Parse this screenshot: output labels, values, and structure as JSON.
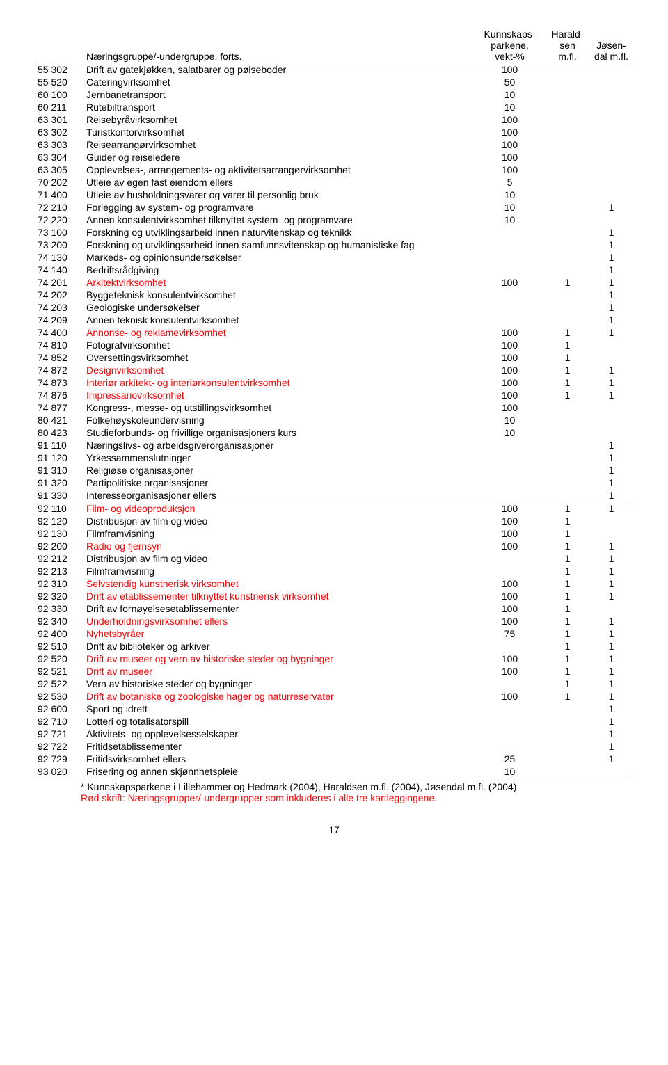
{
  "header": {
    "col_code_desc": "Næringsgruppe/-undergruppe, forts.",
    "col_v1_l1": "Kunnskaps-",
    "col_v1_l2": "parkene,",
    "col_v1_l3": "vekt-%",
    "col_v2_l1": "Harald-",
    "col_v2_l2": "sen",
    "col_v2_l3": "m.fl.",
    "col_v3_l1": "Jøsen-",
    "col_v3_l2": "dal m.fl."
  },
  "rows": [
    {
      "code": "55 302",
      "desc": "Drift av gatekjøkken, salatbarer og pølseboder",
      "v1": "100",
      "v2": "",
      "v3": "",
      "red": false
    },
    {
      "code": "55 520",
      "desc": "Cateringvirksomhet",
      "v1": "50",
      "v2": "",
      "v3": "",
      "red": false
    },
    {
      "code": "60 100",
      "desc": "Jernbanetransport",
      "v1": "10",
      "v2": "",
      "v3": "",
      "red": false
    },
    {
      "code": "60 211",
      "desc": "Rutebiltransport",
      "v1": "10",
      "v2": "",
      "v3": "",
      "red": false
    },
    {
      "code": "63 301",
      "desc": "Reisebyråvirksomhet",
      "v1": "100",
      "v2": "",
      "v3": "",
      "red": false
    },
    {
      "code": "63 302",
      "desc": "Turistkontorvirksomhet",
      "v1": "100",
      "v2": "",
      "v3": "",
      "red": false
    },
    {
      "code": "63 303",
      "desc": "Reisearrangørvirksomhet",
      "v1": "100",
      "v2": "",
      "v3": "",
      "red": false
    },
    {
      "code": "63 304",
      "desc": "Guider og reiseledere",
      "v1": "100",
      "v2": "",
      "v3": "",
      "red": false
    },
    {
      "code": "63 305",
      "desc": "Opplevelses-, arrangements- og aktivitetsarrangørvirksomhet",
      "v1": "100",
      "v2": "",
      "v3": "",
      "red": false
    },
    {
      "code": "70 202",
      "desc": "Utleie av egen fast eiendom ellers",
      "v1": "5",
      "v2": "",
      "v3": "",
      "red": false
    },
    {
      "code": "71 400",
      "desc": "Utleie av husholdningsvarer og varer til personlig bruk",
      "v1": "10",
      "v2": "",
      "v3": "",
      "red": false
    },
    {
      "code": "72 210",
      "desc": "Forlegging av system- og  programvare",
      "v1": "10",
      "v2": "",
      "v3": "1",
      "red": false
    },
    {
      "code": "72 220",
      "desc": "Annen konsulentvirksomhet tilknyttet system- og programvare",
      "v1": "10",
      "v2": "",
      "v3": "",
      "red": false
    },
    {
      "code": "73 100",
      "desc": "Forskning og utviklingsarbeid innen naturvitenskap og teknikk",
      "v1": "",
      "v2": "",
      "v3": "1",
      "red": false
    },
    {
      "code": "73 200",
      "desc": "Forskning og utviklingsarbeid innen samfunnsvitenskap og humanistiske fag",
      "v1": "",
      "v2": "",
      "v3": "1",
      "red": false
    },
    {
      "code": "74 130",
      "desc": "Markeds- og opinionsundersøkelser",
      "v1": "",
      "v2": "",
      "v3": "1",
      "red": false
    },
    {
      "code": "74 140",
      "desc": "Bedriftsrådgiving",
      "v1": "",
      "v2": "",
      "v3": "1",
      "red": false
    },
    {
      "code": "74 201",
      "desc": "Arkitektvirksomhet",
      "v1": "100",
      "v2": "1",
      "v3": "1",
      "red": true
    },
    {
      "code": "74 202",
      "desc": "Byggeteknisk konsulentvirksomhet",
      "v1": "",
      "v2": "",
      "v3": "1",
      "red": false
    },
    {
      "code": "74 203",
      "desc": "Geologiske undersøkelser",
      "v1": "",
      "v2": "",
      "v3": "1",
      "red": false
    },
    {
      "code": "74 209",
      "desc": "Annen teknisk konsulentvirksomhet",
      "v1": "",
      "v2": "",
      "v3": "1",
      "red": false
    },
    {
      "code": "74 400",
      "desc": "Annonse- og reklamevirksomhet",
      "v1": "100",
      "v2": "1",
      "v3": "1",
      "red": true
    },
    {
      "code": "74 810",
      "desc": "Fotografvirksomhet",
      "v1": "100",
      "v2": "1",
      "v3": "",
      "red": false
    },
    {
      "code": "74 852",
      "desc": "Oversettingsvirksomhet",
      "v1": "100",
      "v2": "1",
      "v3": "",
      "red": false
    },
    {
      "code": "74 872",
      "desc": "Designvirksomhet",
      "v1": "100",
      "v2": "1",
      "v3": "1",
      "red": true
    },
    {
      "code": "74 873",
      "desc": "Interiør arkitekt- og interiørkonsulentvirksomhet",
      "v1": "100",
      "v2": "1",
      "v3": "1",
      "red": true
    },
    {
      "code": "74 876",
      "desc": "Impressariovirksomhet",
      "v1": "100",
      "v2": "1",
      "v3": "1",
      "red": true
    },
    {
      "code": "74 877",
      "desc": "Kongress-, messe- og utstillingsvirksomhet",
      "v1": "100",
      "v2": "",
      "v3": "",
      "red": false
    },
    {
      "code": "80 421",
      "desc": "Folkehøyskoleundervisning",
      "v1": "10",
      "v2": "",
      "v3": "",
      "red": false
    },
    {
      "code": "80 423",
      "desc": "Studieforbunds- og frivillige organisasjoners kurs",
      "v1": "10",
      "v2": "",
      "v3": "",
      "red": false
    },
    {
      "code": "91 110",
      "desc": "Næringslivs- og arbeidsgiverorganisasjoner",
      "v1": "",
      "v2": "",
      "v3": "1",
      "red": false
    },
    {
      "code": "91 120",
      "desc": "Yrkessammenslutninger",
      "v1": "",
      "v2": "",
      "v3": "1",
      "red": false
    },
    {
      "code": "91 310",
      "desc": "Religiøse organisasjoner",
      "v1": "",
      "v2": "",
      "v3": "1",
      "red": false
    },
    {
      "code": "91 320",
      "desc": "Partipolitiske organisasjoner",
      "v1": "",
      "v2": "",
      "v3": "1",
      "red": false
    },
    {
      "code": "91 330",
      "desc": "Interesseorganisasjoner ellers",
      "v1": "",
      "v2": "",
      "v3": "1",
      "red": false,
      "sep": true
    },
    {
      "code": "92 110",
      "desc": "Film- og videoproduksjon",
      "v1": "100",
      "v2": "1",
      "v3": "1",
      "red": true
    },
    {
      "code": "92 120",
      "desc": "Distribusjon av film og video",
      "v1": "100",
      "v2": "1",
      "v3": "",
      "red": false
    },
    {
      "code": "92 130",
      "desc": "Filmframvisning",
      "v1": "100",
      "v2": "1",
      "v3": "",
      "red": false
    },
    {
      "code": "92 200",
      "desc": "Radio og fjernsyn",
      "v1": "100",
      "v2": "1",
      "v3": "1",
      "red": true
    },
    {
      "code": "92 212",
      "desc": "Distribusjon av film og video",
      "v1": "",
      "v2": "1",
      "v3": "1",
      "red": false
    },
    {
      "code": "92 213",
      "desc": "Filmframvisning",
      "v1": "",
      "v2": "1",
      "v3": "1",
      "red": false
    },
    {
      "code": "92 310",
      "desc": "Selvstendig kunstnerisk virksomhet",
      "v1": "100",
      "v2": "1",
      "v3": "1",
      "red": true
    },
    {
      "code": "92 320",
      "desc": "Drift av etablissementer tilknyttet kunstnerisk virksomhet",
      "v1": "100",
      "v2": "1",
      "v3": "1",
      "red": true
    },
    {
      "code": "92 330",
      "desc": "Drift av fornøyelsesetablissementer",
      "v1": "100",
      "v2": "1",
      "v3": "",
      "red": false
    },
    {
      "code": "92 340",
      "desc": "Underholdningsvirksomhet ellers",
      "v1": "100",
      "v2": "1",
      "v3": "1",
      "red": true
    },
    {
      "code": "92 400",
      "desc": "Nyhetsbyråer",
      "v1": "75",
      "v2": "1",
      "v3": "1",
      "red": true
    },
    {
      "code": "92 510",
      "desc": "Drift av biblioteker og arkiver",
      "v1": "",
      "v2": "1",
      "v3": "1",
      "red": false
    },
    {
      "code": "92 520",
      "desc": "Drift av museer og vern av historiske steder og bygninger",
      "v1": "100",
      "v2": "1",
      "v3": "1",
      "red": true
    },
    {
      "code": "92 521",
      "desc": "Drift av museer",
      "v1": "100",
      "v2": "1",
      "v3": "1",
      "red": true
    },
    {
      "code": "92 522",
      "desc": "Vern av historiske steder og bygninger",
      "v1": "",
      "v2": "1",
      "v3": "1",
      "red": false
    },
    {
      "code": "92 530",
      "desc": "Drift av botaniske og zoologiske hager og naturreservater",
      "v1": "100",
      "v2": "1",
      "v3": "1",
      "red": true
    },
    {
      "code": "92 600",
      "desc": "Sport og idrett",
      "v1": "",
      "v2": "",
      "v3": "1",
      "red": false
    },
    {
      "code": "92 710",
      "desc": "Lotteri og totalisatorspill",
      "v1": "",
      "v2": "",
      "v3": "1",
      "red": false
    },
    {
      "code": "92 721",
      "desc": "Aktivitets- og opplevelsesselskaper",
      "v1": "",
      "v2": "",
      "v3": "1",
      "red": false
    },
    {
      "code": "92 722",
      "desc": "Fritidsetablissementer",
      "v1": "",
      "v2": "",
      "v3": "1",
      "red": false
    },
    {
      "code": "92 729",
      "desc": "Fritidsvirksomhet ellers",
      "v1": "25",
      "v2": "",
      "v3": "1",
      "red": false
    },
    {
      "code": "93 020",
      "desc": "Frisering og annen skjønnhetspleie",
      "v1": "10",
      "v2": "",
      "v3": "",
      "red": false,
      "sep": true
    }
  ],
  "footnote": {
    "line1": "* Kunnskapsparkene i Lillehammer og Hedmark (2004), Haraldsen m.fl. (2004), Jøsendal m.fl. (2004)",
    "line2": "Rød skrift: Næringsgrupper/-undergrupper som inkluderes i alle tre kartleggingene."
  },
  "page_number": "17"
}
